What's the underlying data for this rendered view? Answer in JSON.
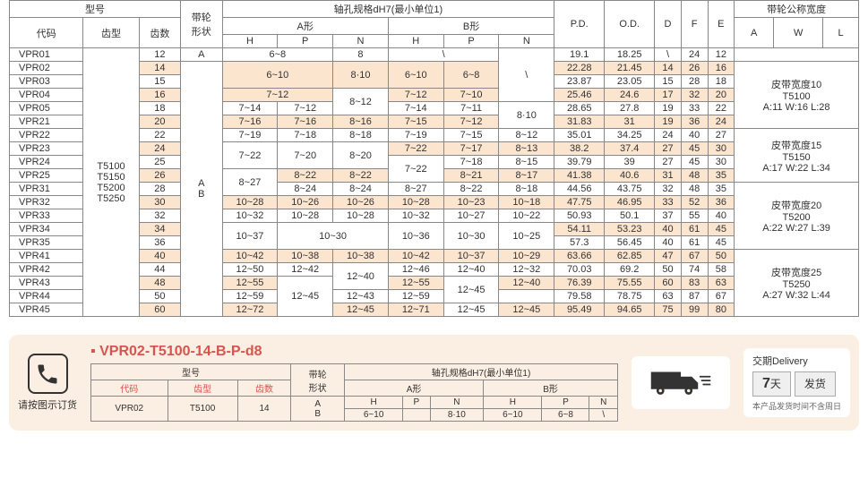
{
  "headers": {
    "model": "型号",
    "pulley_shape": "带轮\n形状",
    "bore": "轴孔规格dH7(最小单位1)",
    "type_a": "A形",
    "type_b": "B形",
    "pd": "P.D.",
    "od": "O.D.",
    "d": "D",
    "f": "F",
    "e": "E",
    "nominal_width": "带轮公称宽度",
    "code": "代码",
    "tooth": "齿型",
    "teeth": "齿数",
    "h": "H",
    "p": "P",
    "n": "N",
    "a": "A",
    "w": "W",
    "l": "L"
  },
  "tooth_types": "T5100\nT5150\nT5200\nT5250",
  "shape_val": "A\nB",
  "shape_a": "A",
  "rows": [
    {
      "code": "VPR01",
      "teeth": "12",
      "aH": "6~8",
      "aP": "",
      "aN": "8",
      "bH": "\\",
      "bP": "",
      "bN": "",
      "pd": "19.1",
      "od": "18.25",
      "d": "\\",
      "f": "24",
      "e": "12",
      "hl": false
    },
    {
      "code": "VPR02",
      "teeth": "14",
      "aH": "6~10",
      "aP": "",
      "aN": "8·10",
      "bH": "6~10",
      "bP": "6~8",
      "bN": "",
      "pd": "22.28",
      "od": "21.45",
      "d": "14",
      "f": "26",
      "e": "16",
      "hl": true
    },
    {
      "code": "VPR03",
      "teeth": "15",
      "aH": "",
      "aP": "",
      "aN": "",
      "bH": "",
      "bP": "",
      "bN": "",
      "pd": "23.87",
      "od": "23.05",
      "d": "15",
      "f": "28",
      "e": "18",
      "hl": false
    },
    {
      "code": "VPR04",
      "teeth": "16",
      "aH": "7~12",
      "aP": "",
      "aN": "8~12",
      "bH": "7~12",
      "bP": "7~10",
      "bN": "8",
      "pd": "25.46",
      "od": "24.6",
      "d": "17",
      "f": "32",
      "e": "20",
      "hl": true
    },
    {
      "code": "VPR05",
      "teeth": "18",
      "aH": "7~14",
      "aP": "7~12",
      "aN": "",
      "bH": "7~14",
      "bP": "7~11",
      "bN": "8·10",
      "pd": "28.65",
      "od": "27.8",
      "d": "19",
      "f": "33",
      "e": "22",
      "hl": false
    },
    {
      "code": "VPR21",
      "teeth": "20",
      "aH": "7~16",
      "aP": "7~16",
      "aN": "8~16",
      "bH": "7~15",
      "bP": "7~12",
      "bN": "",
      "pd": "31.83",
      "od": "31",
      "d": "19",
      "f": "36",
      "e": "24",
      "hl": true
    },
    {
      "code": "VPR22",
      "teeth": "22",
      "aH": "7~19",
      "aP": "7~18",
      "aN": "8~18",
      "bH": "7~19",
      "bP": "7~15",
      "bN": "8~12",
      "pd": "35.01",
      "od": "34.25",
      "d": "24",
      "f": "40",
      "e": "27",
      "hl": false
    },
    {
      "code": "VPR23",
      "teeth": "24",
      "aH": "7~22",
      "aP": "7~20",
      "aN": "8~20",
      "bH": "7~22",
      "bP": "7~17",
      "bN": "8~13",
      "pd": "38.2",
      "od": "37.4",
      "d": "27",
      "f": "45",
      "e": "30",
      "hl": true
    },
    {
      "code": "VPR24",
      "teeth": "25",
      "aH": "",
      "aP": "",
      "aN": "",
      "bH": "",
      "bP": "7~18",
      "bN": "8~15",
      "pd": "39.79",
      "od": "39",
      "d": "27",
      "f": "45",
      "e": "30",
      "hl": false
    },
    {
      "code": "VPR25",
      "teeth": "26",
      "aH": "8~27",
      "aP": "8~22",
      "aN": "8~22",
      "bH": "8~27",
      "bP": "8~21",
      "bN": "8~17",
      "pd": "41.38",
      "od": "40.6",
      "d": "31",
      "f": "48",
      "e": "35",
      "hl": true
    },
    {
      "code": "VPR31",
      "teeth": "28",
      "aH": "",
      "aP": "8~24",
      "aN": "8~24",
      "bH": "",
      "bP": "8~22",
      "bN": "8~18",
      "pd": "44.56",
      "od": "43.75",
      "d": "32",
      "f": "48",
      "e": "35",
      "hl": false
    },
    {
      "code": "VPR32",
      "teeth": "30",
      "aH": "10~28",
      "aP": "10~26",
      "aN": "10~26",
      "bH": "10~28",
      "bP": "10~23",
      "bN": "10~18",
      "pd": "47.75",
      "od": "46.95",
      "d": "33",
      "f": "52",
      "e": "36",
      "hl": true
    },
    {
      "code": "VPR33",
      "teeth": "32",
      "aH": "10~32",
      "aP": "10~28",
      "aN": "10~28",
      "bH": "10~32",
      "bP": "10~27",
      "bN": "10~22",
      "pd": "50.93",
      "od": "50.1",
      "d": "37",
      "f": "55",
      "e": "40",
      "hl": false
    },
    {
      "code": "VPR34",
      "teeth": "34",
      "aH": "10~37",
      "aP": "10~30",
      "aN": "",
      "bH": "10~36",
      "bP": "10~30",
      "bN": "10~25",
      "pd": "54.11",
      "od": "53.23",
      "d": "40",
      "f": "61",
      "e": "45",
      "hl": true
    },
    {
      "code": "VPR35",
      "teeth": "36",
      "aH": "",
      "aP": "",
      "aN": "",
      "bH": "",
      "bP": "",
      "bN": "",
      "pd": "57.3",
      "od": "56.45",
      "d": "40",
      "f": "61",
      "e": "45",
      "hl": false
    },
    {
      "code": "VPR41",
      "teeth": "40",
      "aH": "10~42",
      "aP": "10~38",
      "aN": "10~38",
      "bH": "10~42",
      "bP": "10~37",
      "bN": "10~29",
      "pd": "63.66",
      "od": "62.85",
      "d": "47",
      "f": "67",
      "e": "50",
      "hl": true
    },
    {
      "code": "VPR42",
      "teeth": "44",
      "aH": "12~50",
      "aP": "12~42",
      "aN": "12~40",
      "bH": "12~46",
      "bP": "12~40",
      "bN": "12~32",
      "pd": "70.03",
      "od": "69.2",
      "d": "50",
      "f": "74",
      "e": "58",
      "hl": false
    },
    {
      "code": "VPR43",
      "teeth": "48",
      "aH": "12~55",
      "aP": "12~45",
      "aN": "",
      "bH": "12~55",
      "bP": "12~45",
      "bN": "12~40",
      "pd": "76.39",
      "od": "75.55",
      "d": "60",
      "f": "83",
      "e": "63",
      "hl": true
    },
    {
      "code": "VPR44",
      "teeth": "50",
      "aH": "12~59",
      "aP": "",
      "aN": "12~43",
      "bH": "12~59",
      "bP": "",
      "bN": "",
      "pd": "79.58",
      "od": "78.75",
      "d": "63",
      "f": "87",
      "e": "67",
      "hl": false
    },
    {
      "code": "VPR45",
      "teeth": "60",
      "aH": "12~72",
      "aP": "",
      "aN": "12~45",
      "bH": "12~71",
      "bP": "",
      "bN": "12~45",
      "pd": "95.49",
      "od": "94.65",
      "d": "75",
      "f": "99",
      "e": "80",
      "hl": true
    }
  ],
  "width_info": [
    {
      "title": "皮带宽度10",
      "sub": "T5100",
      "dims": "A:11 W:16 L:28"
    },
    {
      "title": "皮带宽度15",
      "sub": "T5150",
      "dims": "A:17 W:22 L:34"
    },
    {
      "title": "皮带宽度20",
      "sub": "T5200",
      "dims": "A:22 W:27 L:39"
    },
    {
      "title": "皮带宽度25",
      "sub": "T5250",
      "dims": "A:27 W:32 L:44"
    }
  ],
  "bottom": {
    "order_hint": "请按图示订货",
    "example": "VPR02-T5100-14-B-P-d8",
    "code_val": "VPR02",
    "tooth_val": "T5100",
    "teeth_val": "14",
    "shape_vals": "A\nB",
    "ah": "6~10",
    "ap": "",
    "an": "8·10",
    "bh": "6~10",
    "bp": "6~8",
    "bn": "\\",
    "delivery_label": "交期Delivery",
    "days": "7",
    "days_unit": "天",
    "ship": "发货",
    "note": "本产品发货时间不含周日"
  },
  "slash": "\\"
}
